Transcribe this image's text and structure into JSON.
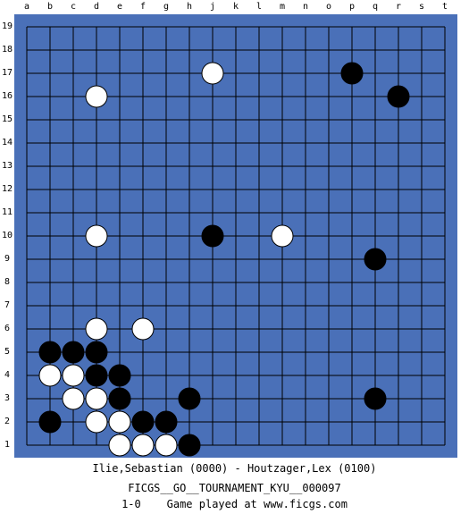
{
  "board": {
    "size": 19,
    "columns": [
      "a",
      "b",
      "c",
      "d",
      "e",
      "f",
      "g",
      "h",
      "j",
      "k",
      "l",
      "m",
      "n",
      "o",
      "p",
      "q",
      "r",
      "s",
      "t"
    ],
    "rows": [
      "19",
      "18",
      "17",
      "16",
      "15",
      "14",
      "13",
      "12",
      "11",
      "10",
      "9",
      "8",
      "7",
      "6",
      "5",
      "4",
      "3",
      "2",
      "1"
    ],
    "colors": {
      "background": "#4a70b8",
      "lines": "#000000",
      "black_stone": "#000000",
      "white_stone": "#ffffff"
    },
    "stones": {
      "black": [
        "p17",
        "r16",
        "j10",
        "q9",
        "b5",
        "c5",
        "d5",
        "d4",
        "e4",
        "e3",
        "h3",
        "q3",
        "b2",
        "f2",
        "g2",
        "h1"
      ],
      "white": [
        "j17",
        "d16",
        "d10",
        "m10",
        "d6",
        "f6",
        "b4",
        "c4",
        "c3",
        "d3",
        "d2",
        "e2",
        "e1",
        "f1",
        "g1"
      ]
    }
  },
  "game": {
    "players": "Ilie,Sebastian (0000) - Houtzager,Lex (0100)",
    "event": "FICGS__GO__TOURNAMENT_KYU__000097",
    "result_line": "1-0    Game played at www.ficgs.com"
  }
}
